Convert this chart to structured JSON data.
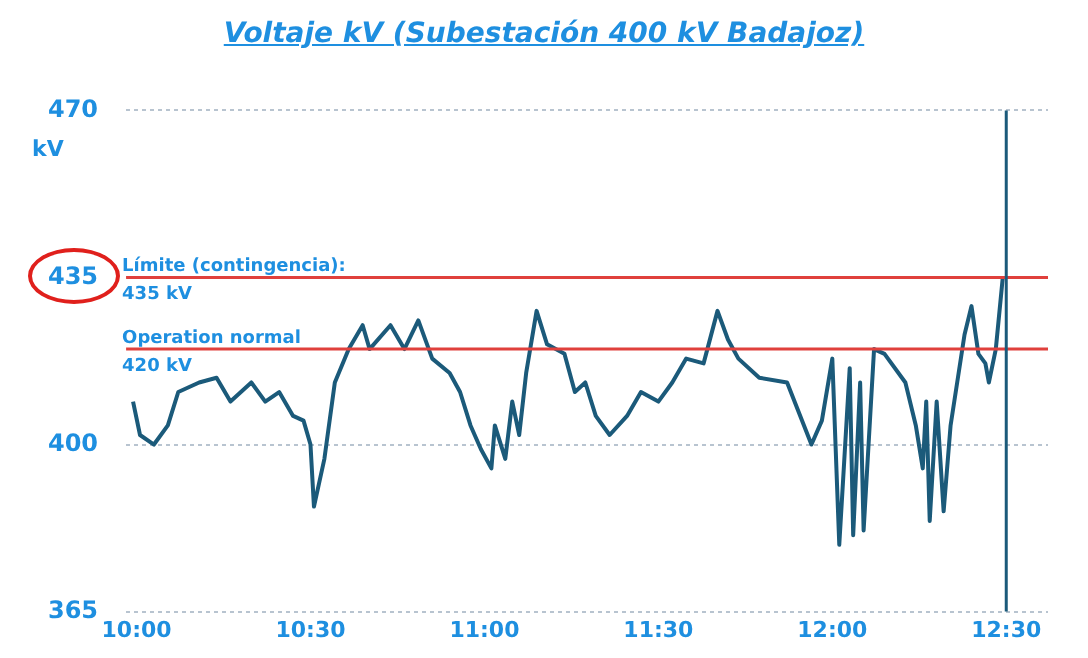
{
  "chart_data": {
    "type": "line",
    "title": "Voltaje kV (Subestación 400 kV Badajoz)",
    "ylabel": "kV",
    "x": [
      9.99,
      10.01,
      10.05,
      10.09,
      10.12,
      10.18,
      10.23,
      10.27,
      10.33,
      10.37,
      10.41,
      10.45,
      10.48,
      10.5,
      10.51,
      10.54,
      10.57,
      10.61,
      10.65,
      10.67,
      10.73,
      10.77,
      10.81,
      10.85,
      10.9,
      10.93,
      10.96,
      10.99,
      11.02,
      11.03,
      11.06,
      11.08,
      11.1,
      11.12,
      11.15,
      11.18,
      11.23,
      11.26,
      11.29,
      11.32,
      11.36,
      11.41,
      11.45,
      11.5,
      11.54,
      11.58,
      11.63,
      11.67,
      11.7,
      11.73,
      11.79,
      11.87,
      11.94,
      11.97,
      12.0,
      12.02,
      12.05,
      12.06,
      12.08,
      12.09,
      12.12,
      12.15,
      12.21,
      12.24,
      12.26,
      12.27,
      12.28,
      12.3,
      12.32,
      12.34,
      12.38,
      12.4,
      12.42,
      12.44,
      12.45,
      12.47,
      12.49
    ],
    "series": [
      {
        "color": "#1b5a7a",
        "values": [
          409,
          402,
          400,
          404,
          411,
          413,
          414,
          409,
          413,
          409,
          411,
          406,
          405,
          400,
          387,
          397,
          413,
          420,
          425,
          420,
          425,
          420,
          426,
          418,
          415,
          411,
          404,
          399,
          395,
          404,
          397,
          409,
          402,
          415,
          428,
          421,
          419,
          411,
          413,
          406,
          402,
          406,
          411,
          409,
          413,
          418,
          417,
          428,
          422,
          418,
          414,
          413,
          400,
          405,
          418,
          379,
          416,
          381,
          413,
          382,
          420,
          419,
          413,
          404,
          395,
          409,
          384,
          409,
          386,
          404,
          423,
          429,
          419,
          417,
          413,
          420,
          435
        ]
      }
    ],
    "xlim": [
      9.97,
      12.62
    ],
    "xticks": [
      {
        "value": 10,
        "label": "10:00"
      },
      {
        "value": 10.5,
        "label": "10:30"
      },
      {
        "value": 11,
        "label": "11:00"
      },
      {
        "value": 11.5,
        "label": "11:30"
      },
      {
        "value": 12,
        "label": "12:00"
      },
      {
        "value": 12.5,
        "label": "12:30"
      }
    ],
    "ylim": [
      365,
      470
    ],
    "yticks": [
      365,
      400,
      435,
      470
    ],
    "ref_lines": [
      {
        "axis": "y",
        "value": 435,
        "label": "Límite (contingencia):\n435 kV",
        "color": "#e0403c"
      },
      {
        "axis": "y",
        "value": 420,
        "label": "Operation normal\n420 kV",
        "color": "#e0403c"
      },
      {
        "axis": "x",
        "value": 12.5,
        "color": "#1b5a7a"
      }
    ],
    "grid": "y",
    "legend": false,
    "marker": "none",
    "line_style": "solid"
  }
}
